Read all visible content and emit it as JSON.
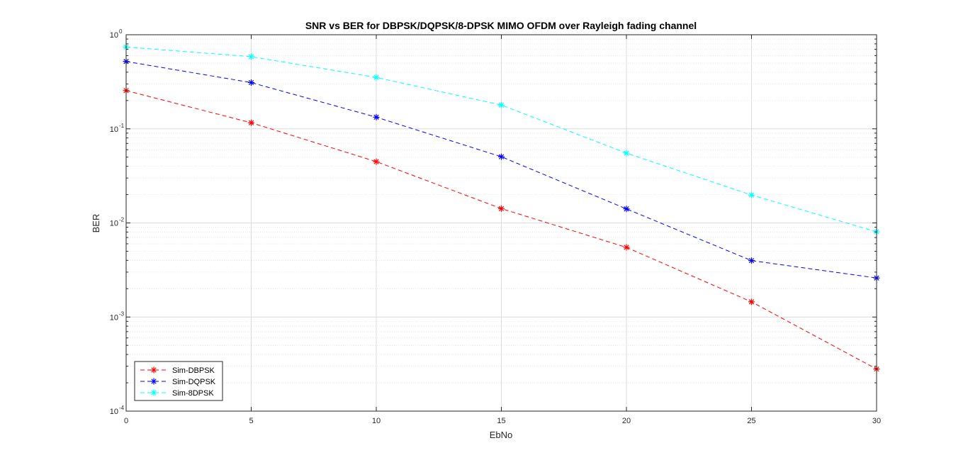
{
  "chart_data": {
    "type": "line",
    "title": "SNR vs BER for DBPSK/DQPSK/8-DPSK MIMO OFDM over Rayleigh fading channel",
    "xlabel": "EbNo",
    "ylabel": "BER",
    "x": [
      0,
      5,
      10,
      15,
      20,
      25,
      30
    ],
    "xlim": [
      0,
      30
    ],
    "ylim": [
      0.0001,
      1
    ],
    "yscale": "log",
    "xticks": [
      "0",
      "5",
      "10",
      "15",
      "20",
      "25",
      "30"
    ],
    "yticks": [
      {
        "base": "10",
        "exp": "0"
      },
      {
        "base": "10",
        "exp": "-1"
      },
      {
        "base": "10",
        "exp": "-2"
      },
      {
        "base": "10",
        "exp": "-3"
      },
      {
        "base": "10",
        "exp": "-4"
      }
    ],
    "grid": true,
    "legend_position": "bottom-left",
    "series": [
      {
        "name": "Sim-DBPSK",
        "color": "#ff0000",
        "marker": "asterisk",
        "linestyle": "dashed",
        "values": [
          0.255,
          0.116,
          0.0448,
          0.0142,
          0.0055,
          0.00145,
          0.00028
        ]
      },
      {
        "name": "Sim-DQPSK",
        "color": "#0000ff",
        "marker": "asterisk",
        "linestyle": "dashed",
        "values": [
          0.52,
          0.31,
          0.133,
          0.0505,
          0.0141,
          0.00398,
          0.0026
        ]
      },
      {
        "name": "Sim-8DPSK",
        "color": "#00ffff",
        "marker": "asterisk",
        "linestyle": "dashed",
        "values": [
          0.74,
          0.585,
          0.352,
          0.179,
          0.0552,
          0.0198,
          0.00805
        ]
      }
    ]
  }
}
